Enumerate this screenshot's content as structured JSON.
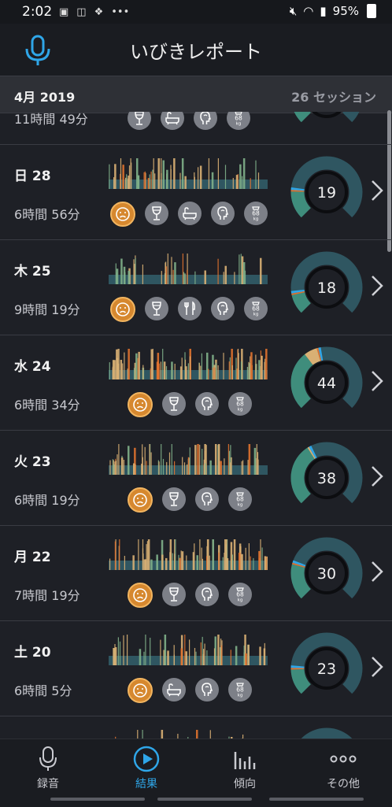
{
  "status": {
    "time": "2:02",
    "battery": "95%",
    "icons": [
      "image-icon",
      "signal-x-icon",
      "dropbox-icon",
      "more-dots"
    ]
  },
  "header": {
    "title": "いびきレポート"
  },
  "month_bar": {
    "month": "4月 2019",
    "sessions": "26 セッション"
  },
  "top_partial": {
    "duration": "11時間 49分",
    "icons": [
      "wine",
      "bath",
      "head",
      "weight"
    ]
  },
  "sessions": [
    {
      "day": "日 28",
      "duration": "6時間 56分",
      "score": "19",
      "icons": [
        "face",
        "wine",
        "bath",
        "head",
        "weight"
      ],
      "gauge": {
        "quiet": 0.7,
        "light": 0.17,
        "loud": 0.0,
        "epic": 0.01
      }
    },
    {
      "day": "木 25",
      "duration": "9時間 19分",
      "score": "18",
      "icons": [
        "face",
        "wine",
        "fork",
        "head",
        "weight"
      ],
      "gauge": {
        "quiet": 0.74,
        "light": 0.12,
        "loud": 0.0,
        "epic": 0.01
      }
    },
    {
      "day": "水 24",
      "duration": "6時間 34分",
      "score": "44",
      "icons": [
        "face",
        "wine",
        "head",
        "weight"
      ],
      "gauge": {
        "quiet": 0.38,
        "light": 0.36,
        "loud": 0.08,
        "epic": 0.01
      }
    },
    {
      "day": "火 23",
      "duration": "6時間 19分",
      "score": "38",
      "icons": [
        "face",
        "wine",
        "head",
        "weight"
      ],
      "gauge": {
        "quiet": 0.45,
        "light": 0.38,
        "loud": 0.01,
        "epic": 0.0
      }
    },
    {
      "day": "月 22",
      "duration": "7時間 19分",
      "score": "30",
      "icons": [
        "face",
        "wine",
        "head",
        "weight"
      ],
      "gauge": {
        "quiet": 0.6,
        "light": 0.22,
        "loud": 0.0,
        "epic": 0.01
      }
    },
    {
      "day": "土 20",
      "duration": "6時間 5分",
      "score": "23",
      "icons": [
        "face",
        "bath",
        "head",
        "weight"
      ],
      "gauge": {
        "quiet": 0.67,
        "light": 0.16,
        "loud": 0.0,
        "epic": 0.01
      }
    }
  ],
  "weight_label": "68",
  "weight_unit": "kg",
  "tabs": [
    {
      "label": "録音",
      "icon": "mic-icon"
    },
    {
      "label": "結果",
      "icon": "play-icon"
    },
    {
      "label": "傾向",
      "icon": "bars-icon"
    },
    {
      "label": "その他",
      "icon": "more-icon"
    }
  ],
  "colors": {
    "accent": "#2fa6e8",
    "quiet": "#2f5661",
    "light": "#3f8d7c",
    "loud": "#d9b074",
    "epic": "#e0722f",
    "face": "#d6882f"
  }
}
